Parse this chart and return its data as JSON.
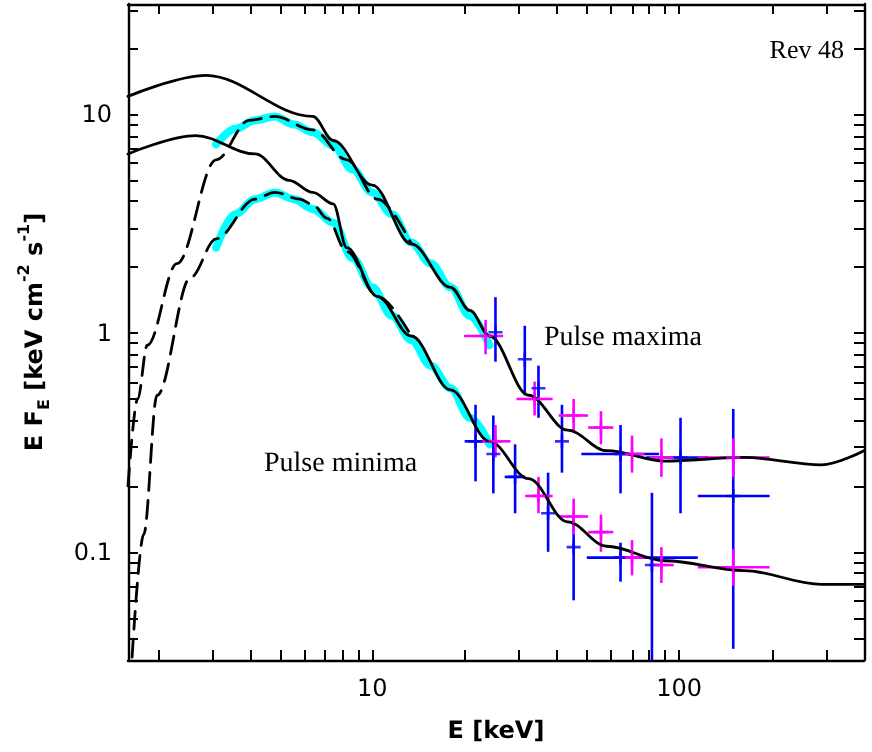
{
  "chart_data": {
    "type": "line",
    "xlabel": "E [keV]",
    "ylabel": "E F$_{E}$ [keV cm$^{-2}$ s$^{-1}$]",
    "log": "xy",
    "xlim": [
      1.6,
      400
    ],
    "ylim": [
      0.032,
      32
    ],
    "xticks": [
      {
        "value": 2,
        "label": null
      },
      {
        "value": 3,
        "label": null
      },
      {
        "value": 4,
        "label": null
      },
      {
        "value": 5,
        "label": null
      },
      {
        "value": 6,
        "label": null
      },
      {
        "value": 7,
        "label": null
      },
      {
        "value": 8,
        "label": null
      },
      {
        "value": 9,
        "label": null
      },
      10,
      {
        "value": 20,
        "label": null
      },
      {
        "value": 30,
        "label": null
      },
      {
        "value": 40,
        "label": null
      },
      {
        "value": 50,
        "label": null
      },
      {
        "value": 60,
        "label": null
      },
      {
        "value": 70,
        "label": null
      },
      {
        "value": 80,
        "label": null
      },
      {
        "value": 90,
        "label": null
      },
      100,
      {
        "value": 200,
        "label": null
      },
      {
        "value": 300,
        "label": null
      },
      {
        "value": 400,
        "label": null
      }
    ],
    "yticks": [
      {
        "value": 0.04,
        "label": null
      },
      {
        "value": 0.05,
        "label": null
      },
      {
        "value": 0.06,
        "label": null
      },
      {
        "value": 0.07,
        "label": null
      },
      {
        "value": 0.08,
        "label": null
      },
      {
        "value": 0.09,
        "label": null
      },
      0.1,
      {
        "value": 0.2,
        "label": null
      },
      {
        "value": 0.3,
        "label": null
      },
      {
        "value": 0.4,
        "label": null
      },
      {
        "value": 0.5,
        "label": null
      },
      {
        "value": 0.6,
        "label": null
      },
      {
        "value": 0.7,
        "label": null
      },
      {
        "value": 0.8,
        "label": null
      },
      {
        "value": 0.9,
        "label": null
      },
      1,
      {
        "value": 2,
        "label": null
      },
      {
        "value": 3,
        "label": null
      },
      {
        "value": 4,
        "label": null
      },
      {
        "value": 5,
        "label": null
      },
      {
        "value": 6,
        "label": null
      },
      {
        "value": 7,
        "label": null
      },
      {
        "value": 8,
        "label": null
      },
      {
        "value": 9,
        "label": null
      },
      10,
      {
        "value": 20,
        "label": null
      },
      {
        "value": 30,
        "label": null
      }
    ],
    "annotations": [
      "Rev 48",
      "Pulse maxima",
      "Pulse minima"
    ],
    "series": [
      {
        "color": "#00ffff",
        "x": [
          3.1,
          3.58,
          4.15,
          4.81,
          5.56,
          6.4,
          7.46,
          8.64,
          10,
          11.6,
          13.4,
          15.5,
          18,
          20.8,
          24.1
        ],
        "values": [
          7.3,
          8.6,
          9.4,
          9.8,
          9.0,
          8.3,
          7.2,
          5.6,
          4.4,
          3.5,
          2.6,
          2.08,
          1.62,
          1.2,
          0.88
        ]
      },
      {
        "color": "#00ffff",
        "x": [
          3.1,
          3.58,
          4.15,
          4.81,
          5.56,
          6.4,
          7.46,
          8.64,
          10,
          11.6,
          13.4,
          15.5,
          18,
          20.8,
          24.1
        ],
        "values": [
          2.46,
          3.5,
          4.1,
          4.4,
          4.1,
          3.7,
          3.2,
          2.2,
          1.62,
          1.2,
          0.93,
          0.71,
          0.56,
          0.41,
          0.31
        ]
      },
      {
        "color": "#000000",
        "line_style": "solid",
        "x": [
          1.6,
          2.87,
          6.4,
          7.46,
          10,
          13.4,
          18,
          20.8,
          24.1,
          32.3,
          43.3,
          58,
          90,
          162,
          291,
          400
        ],
        "values": [
          12.1,
          15.1,
          9.8,
          7.6,
          4.75,
          2.56,
          1.62,
          1.27,
          0.97,
          0.52,
          0.36,
          0.29,
          0.26,
          0.27,
          0.25,
          0.29
        ]
      },
      {
        "color": "#000000",
        "line_style": "dashed",
        "x": [
          1.6,
          1.72,
          1.85,
          2.31,
          3.1,
          3.97,
          4.81,
          6.4,
          8.26,
          10.4,
          13.4
        ],
        "values": [
          0.2,
          0.5,
          0.88,
          2.08,
          6.2,
          9.4,
          9.8,
          8.5,
          6.2,
          4.1,
          2.56
        ]
      },
      {
        "color": "#000000",
        "line_style": "solid",
        "x": [
          1.6,
          2.66,
          4.15,
          5.36,
          6.4,
          7.46,
          8.26,
          10.4,
          13.4,
          18,
          24.1,
          32.3,
          43.3,
          58,
          90,
          162,
          291,
          400
        ],
        "values": [
          6.6,
          8.0,
          6.6,
          5.0,
          4.4,
          3.9,
          2.46,
          1.47,
          0.97,
          0.55,
          0.32,
          0.216,
          0.137,
          0.106,
          0.091,
          0.082,
          0.071,
          0.071
        ]
      },
      {
        "color": "#000000",
        "line_style": "dashed",
        "x": [
          1.65,
          1.8,
          1.99,
          2.56,
          3.1,
          4.15,
          4.81,
          5.81,
          6.4,
          7.13,
          8.26,
          10.4,
          13.4
        ],
        "values": [
          0.033,
          0.12,
          0.52,
          1.8,
          2.7,
          4.1,
          4.4,
          4.1,
          3.87,
          3.35,
          2.36,
          1.47,
          0.97
        ]
      },
      {
        "type": "scatter",
        "color": "#0000ff",
        "marker": "cross",
        "x": [
          25.2,
          31.4,
          34.8,
          41.5,
          64.4,
          101,
          150,
          21.7,
          24.8,
          29.2,
          37.4,
          45.3,
          64.4,
          81.5
        ],
        "values": [
          1.01,
          0.76,
          0.56,
          0.32,
          0.28,
          0.27,
          0.18,
          0.32,
          0.28,
          0.22,
          0.15,
          0.105,
          0.094,
          0.087
        ],
        "errors": [
          [
            0.74,
            1.46
          ],
          [
            0.52,
            1.08
          ],
          [
            0.41,
            0.71
          ],
          [
            0.23,
            0.47
          ],
          [
            0.185,
            0.38
          ],
          [
            0.15,
            0.41
          ],
          [
            0.036,
            0.45
          ],
          [
            0.21,
            0.47
          ],
          [
            0.185,
            0.42
          ],
          [
            0.15,
            0.31
          ],
          [
            0.1,
            0.23
          ],
          [
            0.06,
            0.145
          ],
          [
            0.073,
            0.11
          ],
          [
            0.032,
            0.186
          ]
        ],
        "xerrors": [
          null,
          null,
          null,
          null,
          [
            48,
            86
          ],
          [
            78,
            124
          ],
          [
            115,
            197
          ],
          [
            20,
            23.5
          ],
          null,
          [
            27,
            31.5
          ],
          null,
          null,
          [
            50,
            115
          ],
          null
        ]
      },
      {
        "type": "scatter",
        "color": "#ff00ff",
        "marker": "cross",
        "x": [
          23.4,
          33.8,
          45.3,
          55.6,
          70.2,
          87.5,
          150,
          25.2,
          34.8,
          45.3,
          55.6,
          70.2,
          87.5,
          150
        ],
        "values": [
          0.97,
          0.5,
          0.42,
          0.37,
          0.28,
          0.27,
          0.27,
          0.32,
          0.18,
          0.145,
          0.123,
          0.094,
          0.087,
          0.085
        ],
        "errors": [
          [
            0.8,
            1.15
          ],
          [
            0.42,
            0.6
          ],
          [
            0.35,
            0.5
          ],
          [
            0.31,
            0.44
          ],
          [
            0.23,
            0.34
          ],
          [
            0.22,
            0.33
          ],
          [
            0.22,
            0.33
          ],
          [
            0.27,
            0.38
          ],
          [
            0.15,
            0.22
          ],
          [
            0.12,
            0.175
          ],
          [
            0.1,
            0.148
          ],
          [
            0.078,
            0.113
          ],
          [
            0.072,
            0.105
          ],
          [
            0.07,
            0.103
          ]
        ],
        "xerrors": [
          [
            19.9,
            26.7
          ],
          [
            29.5,
            38.7
          ],
          [
            40.5,
            50.5
          ],
          [
            50.5,
            61
          ],
          [
            64,
            77
          ],
          [
            80,
            96
          ],
          [
            115,
            197
          ],
          [
            22.5,
            28.2
          ],
          [
            31.5,
            38.7
          ],
          [
            40.5,
            50.5
          ],
          [
            50.5,
            61
          ],
          [
            64,
            77
          ],
          [
            80,
            96
          ],
          [
            115,
            197
          ]
        ]
      }
    ]
  }
}
